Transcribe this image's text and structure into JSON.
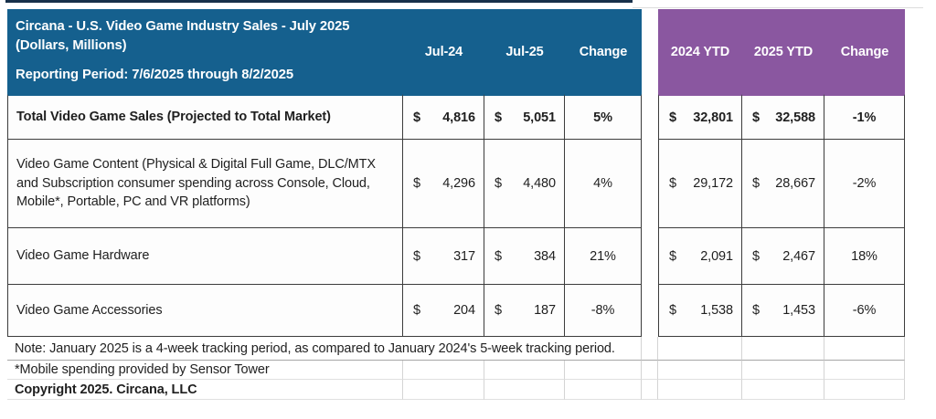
{
  "header": {
    "title_line1": "Circana - U.S. Video Game Industry Sales - July 2025",
    "title_line2": "(Dollars, Millions)",
    "title_line3": "Reporting Period: 7/6/2025 through 8/2/2025",
    "monthly_columns": [
      "Jul-24",
      "Jul-25",
      "Change"
    ],
    "ytd_columns": [
      "2024 YTD",
      "2025 YTD",
      "Change"
    ]
  },
  "currency": "$",
  "rows": [
    {
      "label": "Total Video Game Sales (Projected to Total Market)",
      "jul24": "4,816",
      "jul25": "5,051",
      "change": "5%",
      "ytd24": "32,801",
      "ytd25": "32,588",
      "ytdChange": "-1%"
    },
    {
      "label": "Video Game Content (Physical & Digital Full Game, DLC/MTX and Subscription consumer spending across Console, Cloud, Mobile*, Portable, PC and VR platforms)",
      "jul24": "4,296",
      "jul25": "4,480",
      "change": "4%",
      "ytd24": "29,172",
      "ytd25": "28,667",
      "ytdChange": "-2%"
    },
    {
      "label": "Video Game Hardware",
      "jul24": "317",
      "jul25": "384",
      "change": "21%",
      "ytd24": "2,091",
      "ytd25": "2,467",
      "ytdChange": "18%"
    },
    {
      "label": "Video Game Accessories",
      "jul24": "204",
      "jul25": "187",
      "change": "-8%",
      "ytd24": "1,538",
      "ytd25": "1,453",
      "ytdChange": "-6%"
    }
  ],
  "footer": {
    "note": "Note: January 2025 is a 4-week tracking period, as compared to January 2024's 5-week tracking period.",
    "mobile_note": "*Mobile spending provided by Sensor Tower",
    "copyright": "Copyright 2025. Circana, LLC"
  },
  "colors": {
    "monthly_header_bg": "#15608e",
    "ytd_header_bg": "#8a57a0",
    "grid_border": "#3c3c3c",
    "header_text": "#ffffff",
    "body_text": "#1f1f1f"
  },
  "chart_data": {
    "type": "table",
    "title": "Circana - U.S. Video Game Industry Sales - July 2025 (Dollars, Millions)",
    "subtitle": "Reporting Period: 7/6/2025 through 8/2/2025",
    "units": "USD millions",
    "columns": [
      "Category",
      "Jul-24",
      "Jul-25",
      "Change",
      "2024 YTD",
      "2025 YTD",
      "Change"
    ],
    "rows": [
      [
        "Total Video Game Sales (Projected to Total Market)",
        4816,
        5051,
        "5%",
        32801,
        32588,
        "-1%"
      ],
      [
        "Video Game Content (Physical & Digital Full Game, DLC/MTX and Subscription consumer spending across Console, Cloud, Mobile*, Portable, PC and VR platforms)",
        4296,
        4480,
        "4%",
        29172,
        28667,
        "-2%"
      ],
      [
        "Video Game Hardware",
        317,
        384,
        "21%",
        2091,
        2467,
        "18%"
      ],
      [
        "Video Game Accessories",
        204,
        187,
        "-8%",
        1538,
        1453,
        "-6%"
      ]
    ],
    "notes": [
      "Note: January 2025 is a 4-week tracking period, as compared to January 2024's 5-week tracking period.",
      "*Mobile spending provided by Sensor Tower",
      "Copyright 2025. Circana, LLC"
    ]
  }
}
